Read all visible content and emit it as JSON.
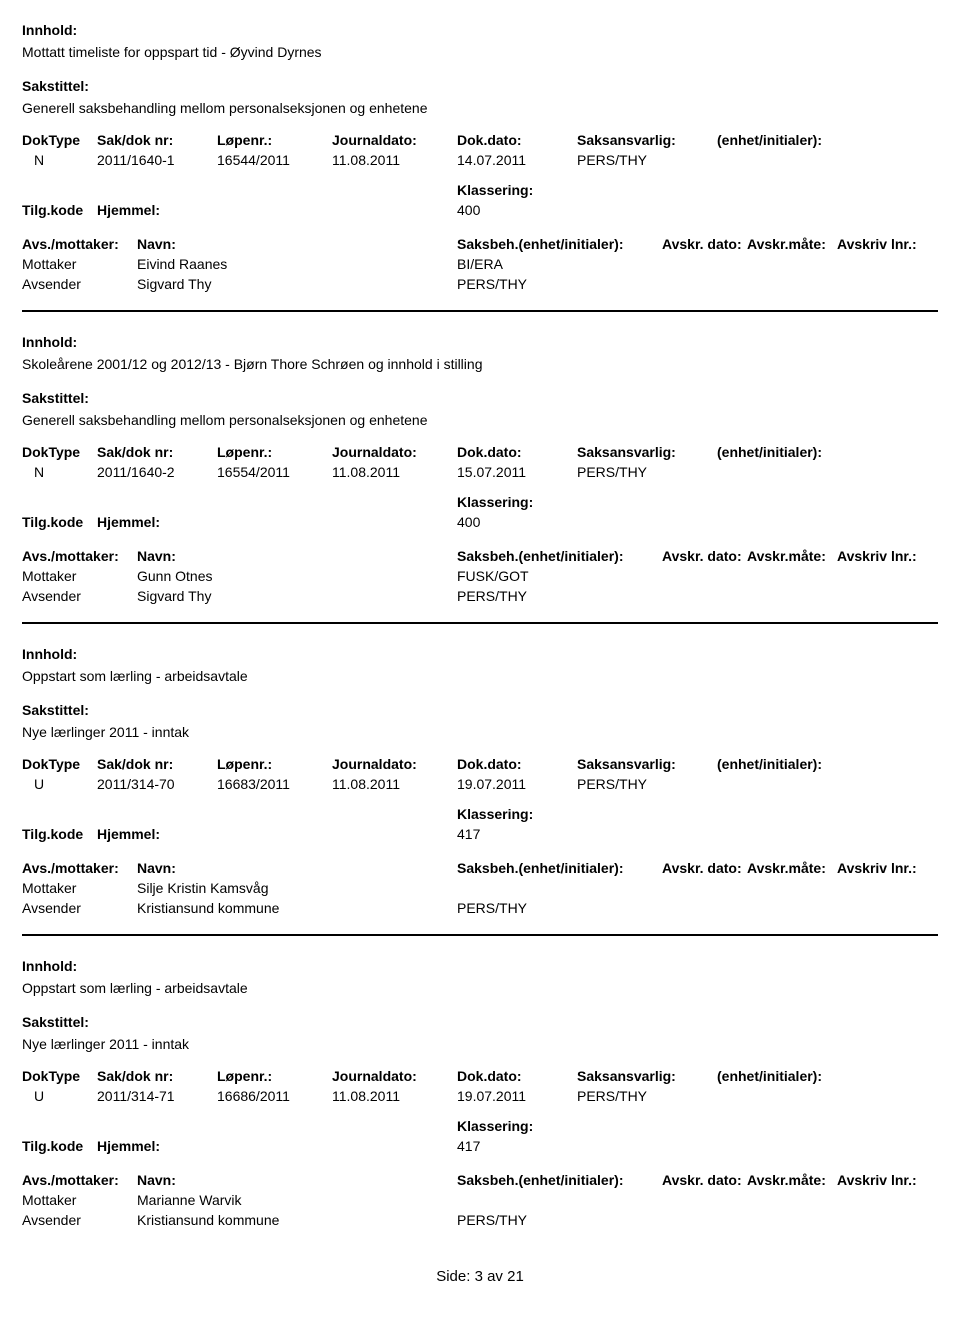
{
  "labels": {
    "innhold": "Innhold:",
    "sakstittel": "Sakstittel:",
    "doktype": "DokType",
    "sakdoknr": "Sak/dok nr:",
    "lopenr": "Løpenr.:",
    "journaldato": "Journaldato:",
    "dokdato": "Dok.dato:",
    "saksansvarlig": "Saksansvarlig:",
    "enhet_initialer": "(enhet/initialer):",
    "klassering": "Klassering:",
    "tilgkode": "Tilg.kode",
    "hjemmel": "Hjemmel:",
    "avs_mottaker": "Avs./mottaker:",
    "navn": "Navn:",
    "saksbeh_enhet": "Saksbeh.(enhet/initialer):",
    "avskr_dato": "Avskr. dato:",
    "avskr_mate": "Avskr.måte:",
    "avskriv_lnr": "Avskriv lnr.:",
    "mottaker": "Mottaker",
    "avsender": "Avsender"
  },
  "records": [
    {
      "innhold": "Mottatt timeliste for oppspart tid - Øyvind Dyrnes",
      "sakstittel": "Generell saksbehandling mellom personalseksjonen og enhetene",
      "doktype": "N",
      "sakdoknr": "2011/1640-1",
      "lopenr": "16544/2011",
      "journaldato": "11.08.2011",
      "dokdato": "14.07.2011",
      "saksansvarlig": "PERS/THY",
      "klassering": "400",
      "show_avs_header": true,
      "rows": [
        {
          "role": "Mottaker",
          "name": "Eivind Raanes",
          "unit": "BI/ERA"
        },
        {
          "role": "Avsender",
          "name": "Sigvard Thy",
          "unit": "PERS/THY"
        }
      ]
    },
    {
      "innhold": "Skoleårene 2001/12 og 2012/13 - Bjørn Thore Schrøen og innhold i stilling",
      "sakstittel": "Generell saksbehandling mellom personalseksjonen og enhetene",
      "doktype": "N",
      "sakdoknr": "2011/1640-2",
      "lopenr": "16554/2011",
      "journaldato": "11.08.2011",
      "dokdato": "15.07.2011",
      "saksansvarlig": "PERS/THY",
      "klassering": "400",
      "show_avs_header": true,
      "rows": [
        {
          "role": "Mottaker",
          "name": "Gunn Otnes",
          "unit": "FUSK/GOT"
        },
        {
          "role": "Avsender",
          "name": "Sigvard Thy",
          "unit": "PERS/THY"
        }
      ]
    },
    {
      "innhold": "Oppstart som lærling - arbeidsavtale",
      "sakstittel": "Nye lærlinger 2011 - inntak",
      "doktype": "U",
      "sakdoknr": "2011/314-70",
      "lopenr": "16683/2011",
      "journaldato": "11.08.2011",
      "dokdato": "19.07.2011",
      "saksansvarlig": "PERS/THY",
      "klassering": "417",
      "show_avs_header": true,
      "rows": [
        {
          "role": "Mottaker",
          "name": "Silje Kristin Kamsvåg",
          "unit": ""
        },
        {
          "role": "Avsender",
          "name": "Kristiansund kommune",
          "unit": "PERS/THY"
        }
      ]
    },
    {
      "innhold": "Oppstart som lærling - arbeidsavtale",
      "sakstittel": "Nye lærlinger 2011 - inntak",
      "doktype": "U",
      "sakdoknr": "2011/314-71",
      "lopenr": "16686/2011",
      "journaldato": "11.08.2011",
      "dokdato": "19.07.2011",
      "saksansvarlig": "PERS/THY",
      "klassering": "417",
      "show_avs_header": true,
      "rows": [
        {
          "role": "Mottaker",
          "name": "Marianne Warvik",
          "unit": ""
        },
        {
          "role": "Avsender",
          "name": "Kristiansund kommune",
          "unit": "PERS/THY"
        }
      ]
    }
  ],
  "footer": "Side: 3 av 21"
}
